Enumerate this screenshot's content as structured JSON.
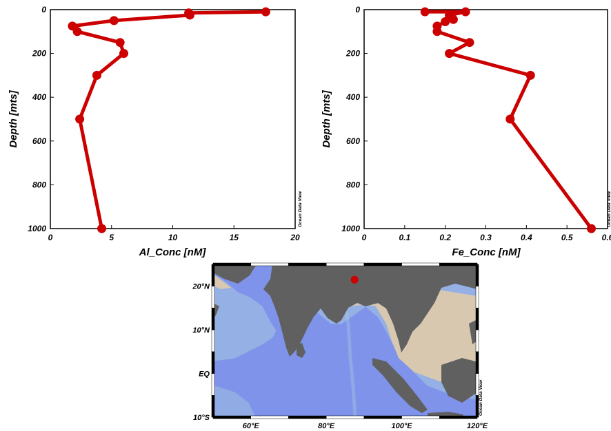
{
  "watermark": "Ocean Data View",
  "chart_data": [
    {
      "type": "line",
      "xlabel": "Al_Conc [nM]",
      "ylabel": "Depth [mts]",
      "xlim": [
        0,
        20
      ],
      "ylim": [
        1000,
        0
      ],
      "xticks": [
        "0",
        "5",
        "10",
        "15",
        "20"
      ],
      "yticks": [
        "0",
        "200",
        "400",
        "600",
        "800",
        "1000"
      ],
      "color": "#cc0000",
      "series": [
        {
          "x": [
            17.6,
            11.3,
            11.4,
            5.2,
            1.8,
            2.2,
            5.7,
            6.0,
            3.8,
            2.4,
            4.2
          ],
          "y": [
            10,
            15,
            25,
            50,
            75,
            100,
            150,
            200,
            300,
            500,
            1000
          ]
        }
      ]
    },
    {
      "type": "line",
      "xlabel": "Fe_Conc [nM]",
      "ylabel": "Depth [mts]",
      "xlim": [
        0,
        0.6
      ],
      "ylim": [
        1000,
        0
      ],
      "xticks": [
        "0",
        "0.1",
        "0.2",
        "0.3",
        "0.4",
        "0.5",
        "0.6"
      ],
      "yticks": [
        "0",
        "200",
        "400",
        "600",
        "800",
        "1000"
      ],
      "color": "#cc0000",
      "series": [
        {
          "x": [
            0.15,
            0.25,
            0.21,
            0.22,
            0.2,
            0.18,
            0.18,
            0.26,
            0.21,
            0.41,
            0.36,
            0.56
          ],
          "y": [
            10,
            10,
            25,
            45,
            55,
            75,
            100,
            150,
            200,
            300,
            500,
            1000
          ]
        }
      ]
    }
  ],
  "map": {
    "lon_labels": [
      "60°E",
      "80°E",
      "100°E",
      "120°E"
    ],
    "lat_labels": [
      "20°N",
      "10°N",
      "EQ",
      "10°S"
    ],
    "lon_range": [
      50,
      120
    ],
    "lat_range": [
      -10,
      25
    ],
    "station": {
      "lon": 87.5,
      "lat": 21.5
    },
    "colors": {
      "land": "#606060",
      "shelf": "#d8c8b0",
      "slope": "#a8c8e0",
      "ocean": "#7f93ea",
      "station": "#cc0000"
    }
  }
}
